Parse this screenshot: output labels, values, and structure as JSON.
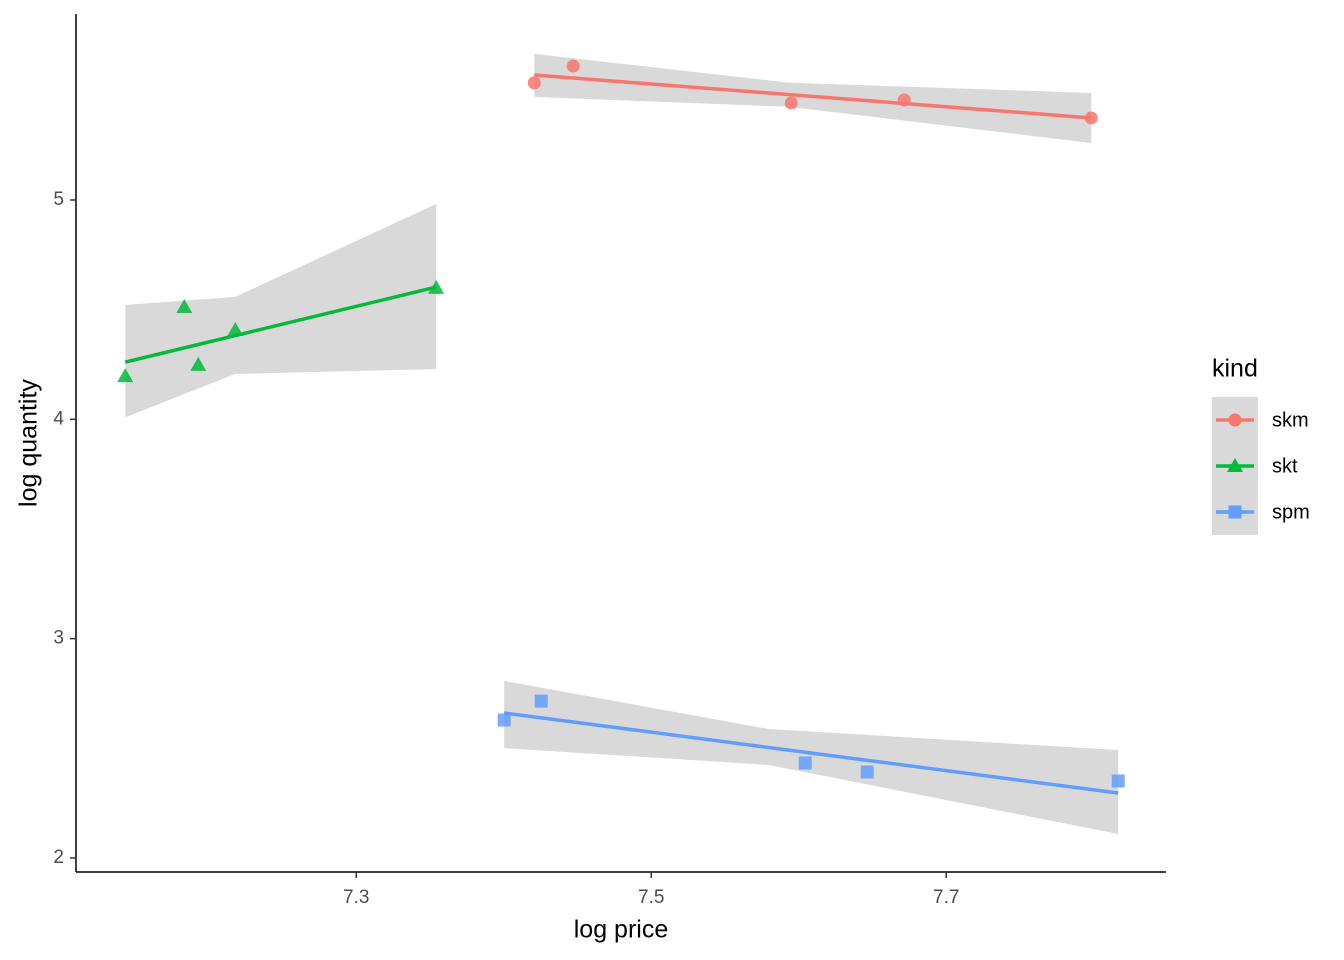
{
  "chart_data": {
    "type": "scatter",
    "x_label": "log price",
    "y_label": "log quantity",
    "legend_title": "kind",
    "legend_position": "right",
    "xlim": [
      7.11,
      7.849
    ],
    "ylim": [
      1.936,
      5.848
    ],
    "xticks": [
      7.3,
      7.5,
      7.7
    ],
    "yticks": [
      2,
      3,
      4,
      5
    ],
    "grid": false,
    "band_color": "#d9d9d9",
    "series": [
      {
        "name": "skm",
        "color": "#F8766D",
        "shape": "circle",
        "x": [
          7.4207,
          7.4471,
          7.5949,
          7.6715,
          7.7983
        ],
        "values": [
          5.534,
          5.611,
          5.442,
          5.456,
          5.374
        ],
        "fit": {
          "x": [
            7.4207,
            7.7983
          ],
          "values": [
            5.57,
            5.374
          ]
        },
        "band": {
          "x": [
            7.4207,
            7.5929,
            7.7983
          ],
          "lower": [
            5.47,
            5.425,
            5.26
          ],
          "upper": [
            5.666,
            5.535,
            5.488
          ]
        }
      },
      {
        "name": "skt",
        "color": "#00BA38",
        "shape": "triangle",
        "x": [
          7.1434,
          7.1834,
          7.1929,
          7.218,
          7.3542
        ],
        "values": [
          4.197,
          4.512,
          4.248,
          4.407,
          4.599
        ],
        "fit": {
          "x": [
            7.1434,
            7.3542
          ],
          "values": [
            4.261,
            4.603
          ]
        },
        "band": {
          "x": [
            7.1434,
            7.218,
            7.3542
          ],
          "lower": [
            4.009,
            4.207,
            4.229
          ],
          "upper": [
            4.521,
            4.558,
            4.982
          ]
        }
      },
      {
        "name": "spm",
        "color": "#619CFF",
        "shape": "square",
        "x": [
          7.4003,
          7.4254,
          7.6044,
          7.6464,
          7.8166
        ],
        "values": [
          2.629,
          2.715,
          2.433,
          2.392,
          2.351
        ],
        "fit": {
          "x": [
            7.4003,
            7.8166
          ],
          "values": [
            2.661,
            2.296
          ]
        },
        "band": {
          "x": [
            7.4003,
            7.5797,
            7.8166
          ],
          "lower": [
            2.501,
            2.424,
            2.109
          ],
          "upper": [
            2.807,
            2.588,
            2.492
          ]
        }
      }
    ]
  }
}
